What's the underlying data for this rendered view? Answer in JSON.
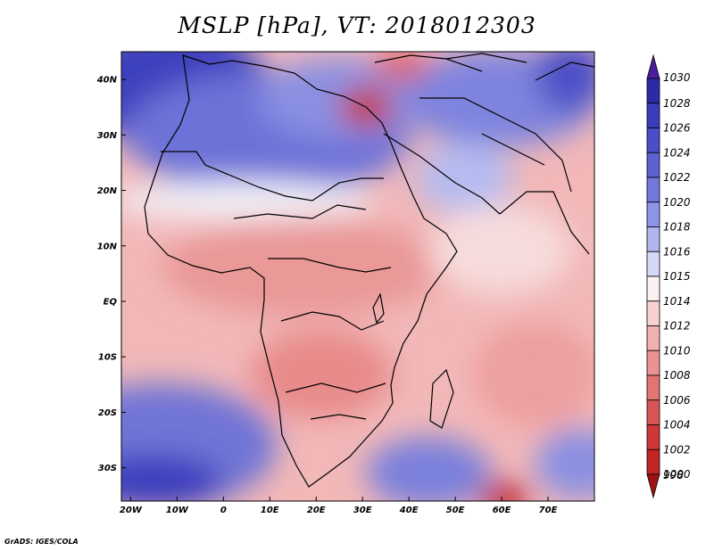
{
  "title": "MSLP [hPa], VT: 2018012303",
  "credit": "GrADS: IGES/COLA",
  "map": {
    "variable": "MSLP",
    "units": "hPa",
    "valid_time": "2018012303",
    "lon_ticks": [
      {
        "label": "20W",
        "lon": -20
      },
      {
        "label": "10W",
        "lon": -10
      },
      {
        "label": "0",
        "lon": 0
      },
      {
        "label": "10E",
        "lon": 10
      },
      {
        "label": "20E",
        "lon": 20
      },
      {
        "label": "30E",
        "lon": 30
      },
      {
        "label": "40E",
        "lon": 40
      },
      {
        "label": "50E",
        "lon": 50
      },
      {
        "label": "60E",
        "lon": 60
      },
      {
        "label": "70E",
        "lon": 70
      }
    ],
    "lat_ticks": [
      {
        "label": "40N",
        "lat": 40
      },
      {
        "label": "30N",
        "lat": 30
      },
      {
        "label": "20N",
        "lat": 20
      },
      {
        "label": "10N",
        "lat": 10
      },
      {
        "label": "EQ",
        "lat": 0
      },
      {
        "label": "10S",
        "lat": -10
      },
      {
        "label": "20S",
        "lat": -20
      },
      {
        "label": "30S",
        "lat": -30
      }
    ],
    "lon_range": [
      -22,
      80
    ],
    "lat_range": [
      -36,
      45
    ]
  },
  "colorbar": {
    "levels": [
      {
        "label": "1030",
        "color": "#4b1e9e"
      },
      {
        "label": "1028",
        "color": "#2d2aa8"
      },
      {
        "label": "1026",
        "color": "#3a3cbc"
      },
      {
        "label": "1024",
        "color": "#4a4ec8"
      },
      {
        "label": "1022",
        "color": "#5c62d2"
      },
      {
        "label": "1020",
        "color": "#7379dc"
      },
      {
        "label": "1018",
        "color": "#8e94e6"
      },
      {
        "label": "1016",
        "color": "#b1b6ef"
      },
      {
        "label": "1015",
        "color": "#d5d8f7"
      },
      {
        "label": "1014",
        "color": "#fbf2f2"
      },
      {
        "label": "1012",
        "color": "#f7d2d2"
      },
      {
        "label": "1010",
        "color": "#f2b0b0"
      },
      {
        "label": "1008",
        "color": "#eb9292"
      },
      {
        "label": "1006",
        "color": "#e27474"
      },
      {
        "label": "1004",
        "color": "#d95555"
      },
      {
        "label": "1002",
        "color": "#cf3838"
      },
      {
        "label": "1000",
        "color": "#c22525"
      },
      {
        "label": "998",
        "color": "#a01212"
      }
    ]
  }
}
